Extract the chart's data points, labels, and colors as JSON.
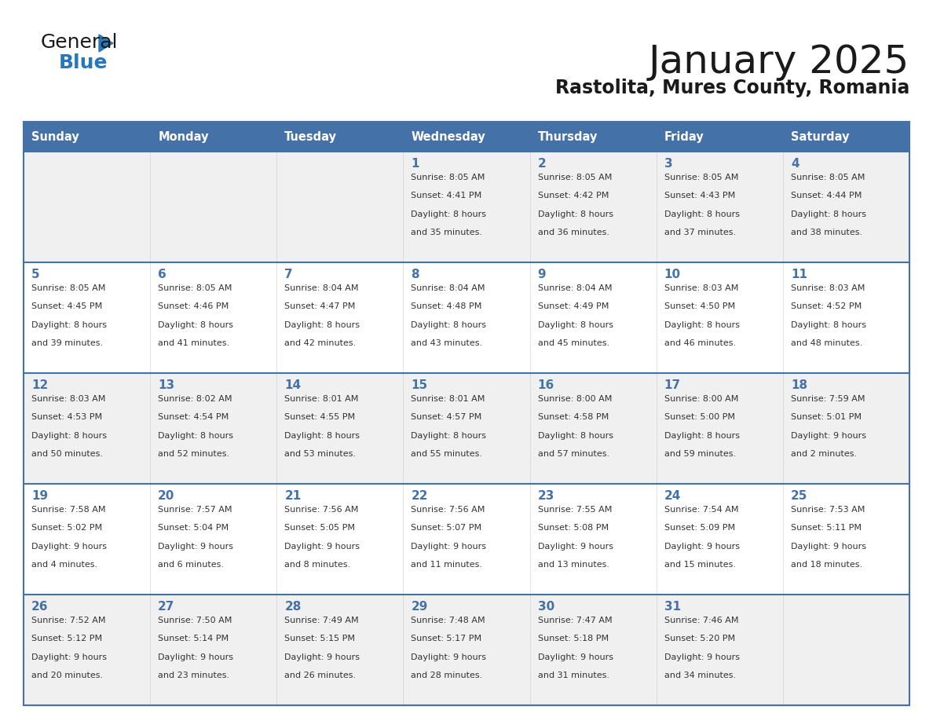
{
  "title": "January 2025",
  "subtitle": "Rastolita, Mures County, Romania",
  "header_bg_color": "#4472a8",
  "cell_bg_odd": "#f0f0f0",
  "cell_bg_even": "#ffffff",
  "border_color": "#4472a8",
  "header_text_color": "#ffffff",
  "text_color": "#333333",
  "day_num_color": "#4472a8",
  "days_of_week": [
    "Sunday",
    "Monday",
    "Tuesday",
    "Wednesday",
    "Thursday",
    "Friday",
    "Saturday"
  ],
  "weeks": [
    [
      {
        "day": null,
        "sunrise": null,
        "sunset": null,
        "daylight": null
      },
      {
        "day": null,
        "sunrise": null,
        "sunset": null,
        "daylight": null
      },
      {
        "day": null,
        "sunrise": null,
        "sunset": null,
        "daylight": null
      },
      {
        "day": 1,
        "sunrise": "8:05 AM",
        "sunset": "4:41 PM",
        "daylight": "8 hours\nand 35 minutes."
      },
      {
        "day": 2,
        "sunrise": "8:05 AM",
        "sunset": "4:42 PM",
        "daylight": "8 hours\nand 36 minutes."
      },
      {
        "day": 3,
        "sunrise": "8:05 AM",
        "sunset": "4:43 PM",
        "daylight": "8 hours\nand 37 minutes."
      },
      {
        "day": 4,
        "sunrise": "8:05 AM",
        "sunset": "4:44 PM",
        "daylight": "8 hours\nand 38 minutes."
      }
    ],
    [
      {
        "day": 5,
        "sunrise": "8:05 AM",
        "sunset": "4:45 PM",
        "daylight": "8 hours\nand 39 minutes."
      },
      {
        "day": 6,
        "sunrise": "8:05 AM",
        "sunset": "4:46 PM",
        "daylight": "8 hours\nand 41 minutes."
      },
      {
        "day": 7,
        "sunrise": "8:04 AM",
        "sunset": "4:47 PM",
        "daylight": "8 hours\nand 42 minutes."
      },
      {
        "day": 8,
        "sunrise": "8:04 AM",
        "sunset": "4:48 PM",
        "daylight": "8 hours\nand 43 minutes."
      },
      {
        "day": 9,
        "sunrise": "8:04 AM",
        "sunset": "4:49 PM",
        "daylight": "8 hours\nand 45 minutes."
      },
      {
        "day": 10,
        "sunrise": "8:03 AM",
        "sunset": "4:50 PM",
        "daylight": "8 hours\nand 46 minutes."
      },
      {
        "day": 11,
        "sunrise": "8:03 AM",
        "sunset": "4:52 PM",
        "daylight": "8 hours\nand 48 minutes."
      }
    ],
    [
      {
        "day": 12,
        "sunrise": "8:03 AM",
        "sunset": "4:53 PM",
        "daylight": "8 hours\nand 50 minutes."
      },
      {
        "day": 13,
        "sunrise": "8:02 AM",
        "sunset": "4:54 PM",
        "daylight": "8 hours\nand 52 minutes."
      },
      {
        "day": 14,
        "sunrise": "8:01 AM",
        "sunset": "4:55 PM",
        "daylight": "8 hours\nand 53 minutes."
      },
      {
        "day": 15,
        "sunrise": "8:01 AM",
        "sunset": "4:57 PM",
        "daylight": "8 hours\nand 55 minutes."
      },
      {
        "day": 16,
        "sunrise": "8:00 AM",
        "sunset": "4:58 PM",
        "daylight": "8 hours\nand 57 minutes."
      },
      {
        "day": 17,
        "sunrise": "8:00 AM",
        "sunset": "5:00 PM",
        "daylight": "8 hours\nand 59 minutes."
      },
      {
        "day": 18,
        "sunrise": "7:59 AM",
        "sunset": "5:01 PM",
        "daylight": "9 hours\nand 2 minutes."
      }
    ],
    [
      {
        "day": 19,
        "sunrise": "7:58 AM",
        "sunset": "5:02 PM",
        "daylight": "9 hours\nand 4 minutes."
      },
      {
        "day": 20,
        "sunrise": "7:57 AM",
        "sunset": "5:04 PM",
        "daylight": "9 hours\nand 6 minutes."
      },
      {
        "day": 21,
        "sunrise": "7:56 AM",
        "sunset": "5:05 PM",
        "daylight": "9 hours\nand 8 minutes."
      },
      {
        "day": 22,
        "sunrise": "7:56 AM",
        "sunset": "5:07 PM",
        "daylight": "9 hours\nand 11 minutes."
      },
      {
        "day": 23,
        "sunrise": "7:55 AM",
        "sunset": "5:08 PM",
        "daylight": "9 hours\nand 13 minutes."
      },
      {
        "day": 24,
        "sunrise": "7:54 AM",
        "sunset": "5:09 PM",
        "daylight": "9 hours\nand 15 minutes."
      },
      {
        "day": 25,
        "sunrise": "7:53 AM",
        "sunset": "5:11 PM",
        "daylight": "9 hours\nand 18 minutes."
      }
    ],
    [
      {
        "day": 26,
        "sunrise": "7:52 AM",
        "sunset": "5:12 PM",
        "daylight": "9 hours\nand 20 minutes."
      },
      {
        "day": 27,
        "sunrise": "7:50 AM",
        "sunset": "5:14 PM",
        "daylight": "9 hours\nand 23 minutes."
      },
      {
        "day": 28,
        "sunrise": "7:49 AM",
        "sunset": "5:15 PM",
        "daylight": "9 hours\nand 26 minutes."
      },
      {
        "day": 29,
        "sunrise": "7:48 AM",
        "sunset": "5:17 PM",
        "daylight": "9 hours\nand 28 minutes."
      },
      {
        "day": 30,
        "sunrise": "7:47 AM",
        "sunset": "5:18 PM",
        "daylight": "9 hours\nand 31 minutes."
      },
      {
        "day": 31,
        "sunrise": "7:46 AM",
        "sunset": "5:20 PM",
        "daylight": "9 hours\nand 34 minutes."
      },
      {
        "day": null,
        "sunrise": null,
        "sunset": null,
        "daylight": null
      }
    ]
  ],
  "logo_general_color": "#1a1a1a",
  "logo_blue_color": "#2777bb",
  "logo_triangle_color": "#2777bb"
}
